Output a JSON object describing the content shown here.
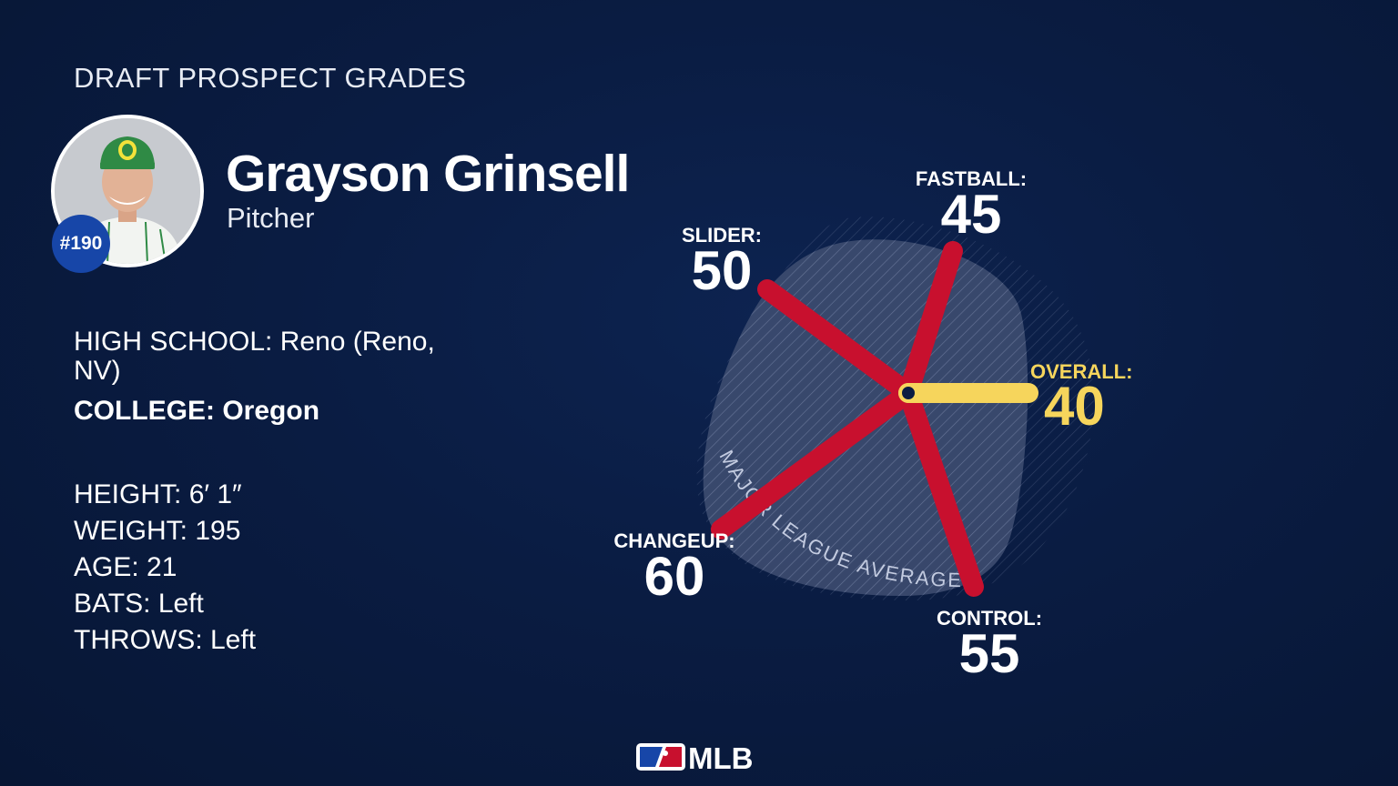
{
  "header": {
    "title": "DRAFT PROSPECT GRADES"
  },
  "player": {
    "name": "Grayson Grinsell",
    "position": "Pitcher",
    "rank": "#190",
    "high_school_label": "HIGH SCHOOL:",
    "high_school_value": "Reno (Reno, NV)",
    "college_label": "COLLEGE:",
    "college_value": "Oregon",
    "height_label": "HEIGHT:",
    "height_value": "6′ 1″",
    "weight_label": "WEIGHT:",
    "weight_value": "195",
    "age_label": "AGE:",
    "age_value": "21",
    "bats_label": "BATS:",
    "bats_value": "Left",
    "throws_label": "THROWS:",
    "throws_value": "Left"
  },
  "chart_data": {
    "type": "radar",
    "scale": [
      20,
      80
    ],
    "reference_label": "MAJOR LEAGUE AVERAGE",
    "reference_value": 50,
    "spokes": [
      {
        "label": "FASTBALL:",
        "value": 45,
        "color": "#c8102e"
      },
      {
        "label": "SLIDER:",
        "value": 50,
        "color": "#c8102e"
      },
      {
        "label": "CHANGEUP:",
        "value": 60,
        "color": "#c8102e"
      },
      {
        "label": "CONTROL:",
        "value": 55,
        "color": "#c8102e"
      },
      {
        "label": "OVERALL:",
        "value": 40,
        "color": "#f6d55c"
      }
    ]
  },
  "colors": {
    "background": "#0a1c42",
    "spoke": "#c8102e",
    "overall": "#f6d55c",
    "badge": "#1746a8"
  },
  "logo": {
    "text": "MLB"
  }
}
